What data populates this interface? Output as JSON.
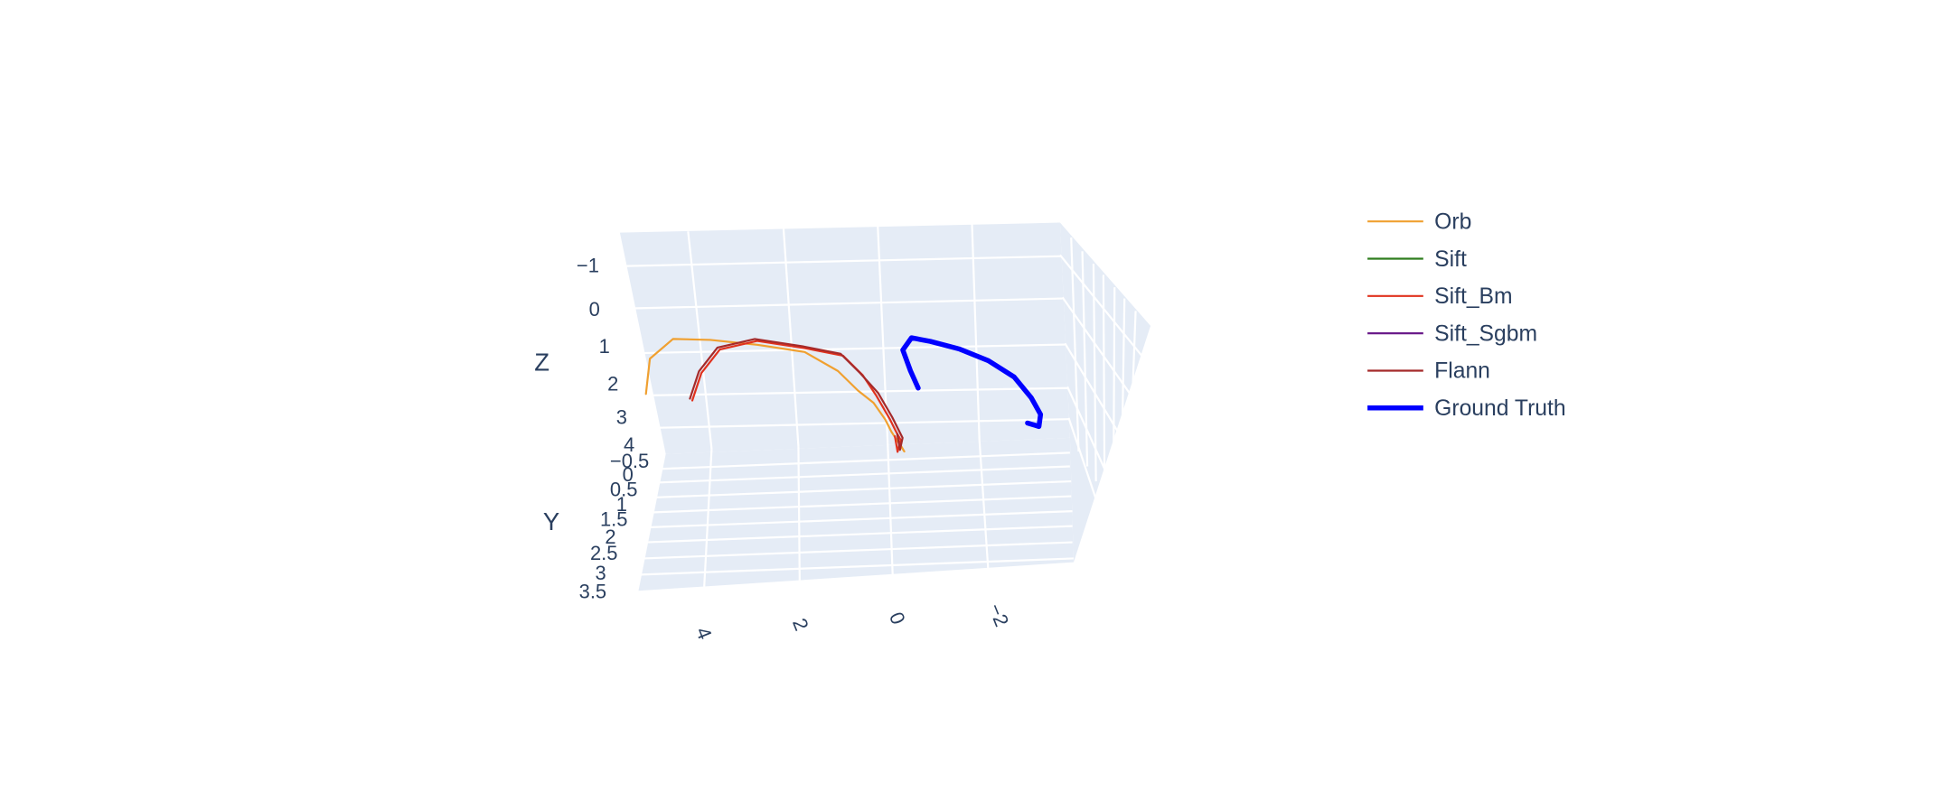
{
  "chart_data": {
    "type": "line",
    "dimensions": 3,
    "title": "",
    "axes": {
      "x": {
        "title": "",
        "ticks": [
          "4",
          "2",
          "0",
          "−2"
        ],
        "range": [
          5.3,
          -3.3
        ]
      },
      "y": {
        "title": "Y",
        "ticks": [
          "−0.5",
          "0",
          "0.5",
          "1",
          "1.5",
          "2",
          "2.5",
          "3",
          "3.5"
        ],
        "range": [
          -0.6,
          3.6
        ]
      },
      "z": {
        "title": "Z",
        "ticks": [
          "−1",
          "0",
          "1",
          "2",
          "3",
          "4"
        ],
        "range": [
          -1.1,
          4.4
        ]
      }
    },
    "grid": true,
    "legend_position": "top-right",
    "series": [
      {
        "name": "Orb",
        "color": "#f0a030",
        "width": 1.6,
        "x": [
          5.4,
          5.3,
          4.8,
          4.0,
          3.0,
          2.0,
          1.3,
          0.9,
          0.6,
          0.4,
          0.3,
          0.15,
          0.05,
          0.2
        ],
        "y": [
          0.2,
          0.1,
          0.05,
          0.0,
          -0.05,
          0.0,
          0.05,
          0.2,
          0.4,
          0.7,
          0.9,
          1.0,
          1.05,
          1.1
        ],
        "z": [
          1.2,
          2.1,
          2.6,
          2.55,
          2.4,
          2.2,
          1.7,
          1.2,
          0.9,
          0.5,
          0.2,
          -0.1,
          -0.3,
          0.0
        ]
      },
      {
        "name": "Sift",
        "color": "#2e7d1e",
        "width": 1.6,
        "x": [],
        "y": [],
        "z": []
      },
      {
        "name": "Sift_Bm",
        "color": "#e0321e",
        "width": 1.6,
        "x": [
          4.4,
          4.2,
          3.8,
          3.0,
          2.0,
          1.2,
          0.8,
          0.55,
          0.3,
          0.2,
          0.12,
          0.2,
          0.25
        ],
        "y": [
          0.1,
          0.05,
          0.0,
          -0.05,
          0.0,
          0.1,
          0.2,
          0.4,
          0.7,
          0.9,
          1.0,
          1.1,
          1.05
        ],
        "z": [
          1.0,
          1.7,
          2.3,
          2.5,
          2.3,
          2.1,
          1.6,
          1.1,
          0.5,
          0.2,
          0.0,
          -0.3,
          0.1
        ]
      },
      {
        "name": "Sift_Sgbm",
        "color": "#6a1b8a",
        "width": 1.6,
        "x": [],
        "y": [],
        "z": []
      },
      {
        "name": "Flann",
        "color": "#a52a2a",
        "width": 1.6,
        "x": [
          4.45,
          4.25,
          3.85,
          3.05,
          2.05,
          1.25,
          0.85,
          0.5,
          0.25,
          0.15,
          0.08,
          0.15,
          0.2
        ],
        "y": [
          0.1,
          0.05,
          0.0,
          -0.05,
          0.0,
          0.1,
          0.2,
          0.4,
          0.7,
          0.9,
          1.0,
          1.1,
          1.05
        ],
        "z": [
          1.05,
          1.75,
          2.35,
          2.55,
          2.35,
          2.15,
          1.65,
          1.15,
          0.55,
          0.25,
          0.05,
          -0.25,
          0.15
        ]
      },
      {
        "name": "Ground Truth",
        "color": "#0000ff",
        "width": 4,
        "x": [
          -0.3,
          -0.2,
          -0.1,
          -0.3,
          -0.7,
          -1.3,
          -1.9,
          -2.4,
          -2.7,
          -2.85,
          -2.8,
          -2.55
        ],
        "y": [
          0.7,
          0.3,
          -0.1,
          -0.2,
          -0.2,
          -0.15,
          0.0,
          0.3,
          0.7,
          1.0,
          1.1,
          1.15
        ],
        "z": [
          1.3,
          1.7,
          2.2,
          2.5,
          2.4,
          2.2,
          1.9,
          1.5,
          1.0,
          0.6,
          0.3,
          0.4
        ]
      }
    ]
  }
}
